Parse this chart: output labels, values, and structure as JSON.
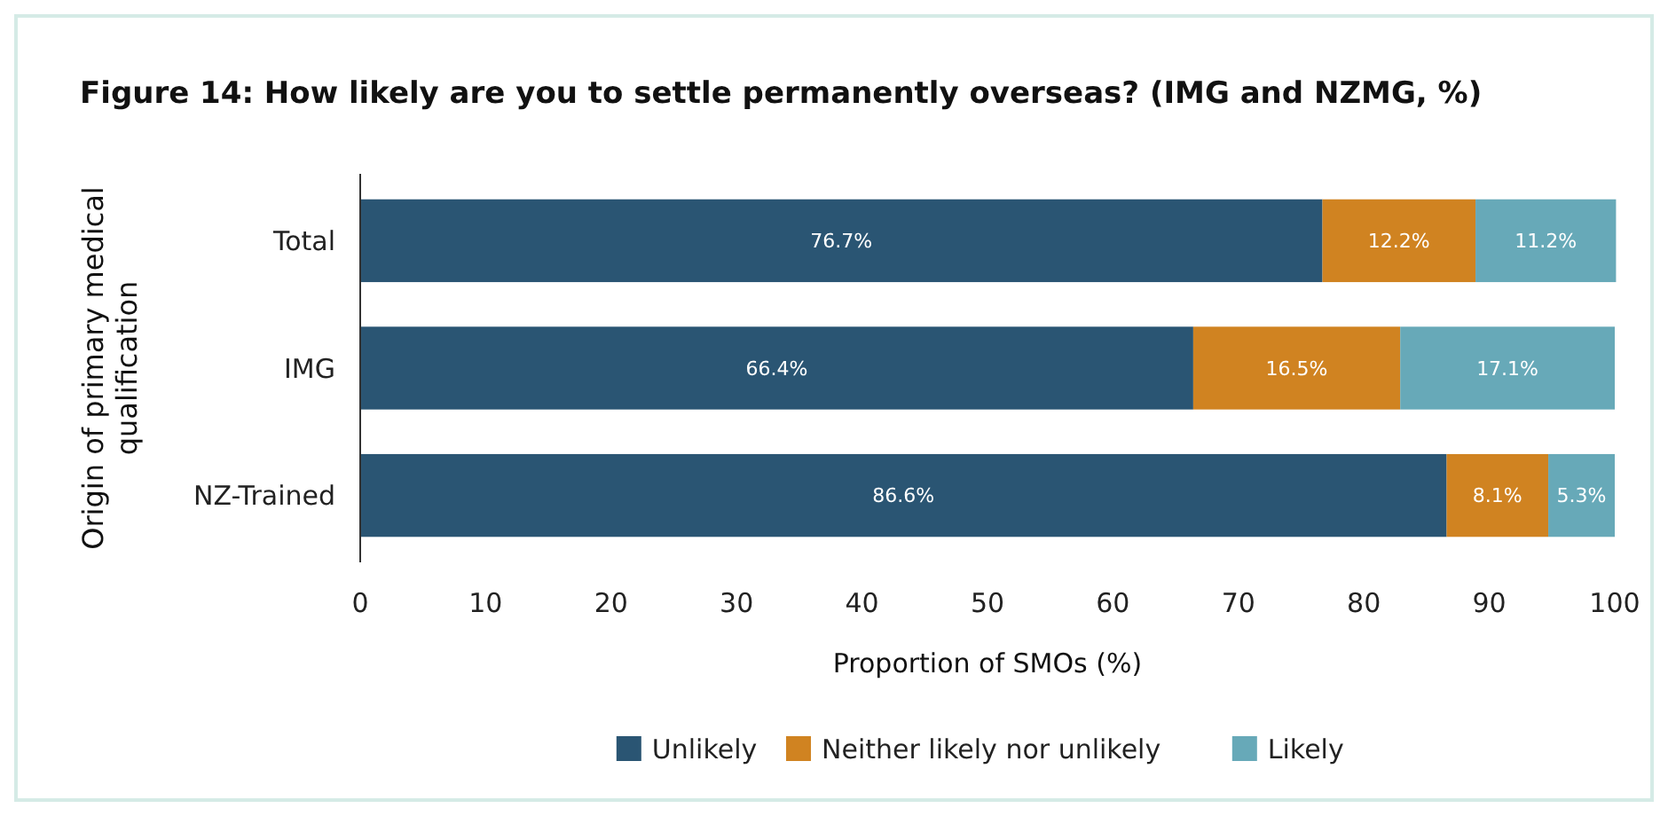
{
  "chart_data": {
    "type": "bar",
    "orientation": "horizontal",
    "stacked": true,
    "title": "Figure 14: How likely are you to settle permanently overseas? (IMG and NZMG, %)",
    "xlabel": "Proportion of SMOs (%)",
    "ylabel": "Origin of primary medical qualification",
    "categories": [
      "Total",
      "IMG",
      "NZ-Trained"
    ],
    "series": [
      {
        "name": "Unlikely",
        "color": "#2a5573",
        "values": [
          76.7,
          66.4,
          86.6
        ],
        "value_labels": [
          "76.7%",
          "66.4%",
          "86.6%"
        ]
      },
      {
        "name": "Neither likely nor unlikely",
        "color": "#d08321",
        "values": [
          12.2,
          16.5,
          8.1
        ],
        "value_labels": [
          "12.2%",
          "16.5%",
          "8.1%"
        ]
      },
      {
        "name": "Likely",
        "color": "#67a9b8",
        "values": [
          11.2,
          17.1,
          5.3
        ],
        "value_labels": [
          "11.2%",
          "17.1%",
          "5.3%"
        ]
      }
    ],
    "xlim": [
      0,
      100
    ],
    "xticks": [
      0,
      10,
      20,
      30,
      40,
      50,
      60,
      70,
      80,
      90,
      100
    ],
    "grid": false,
    "legend": "bottom"
  }
}
